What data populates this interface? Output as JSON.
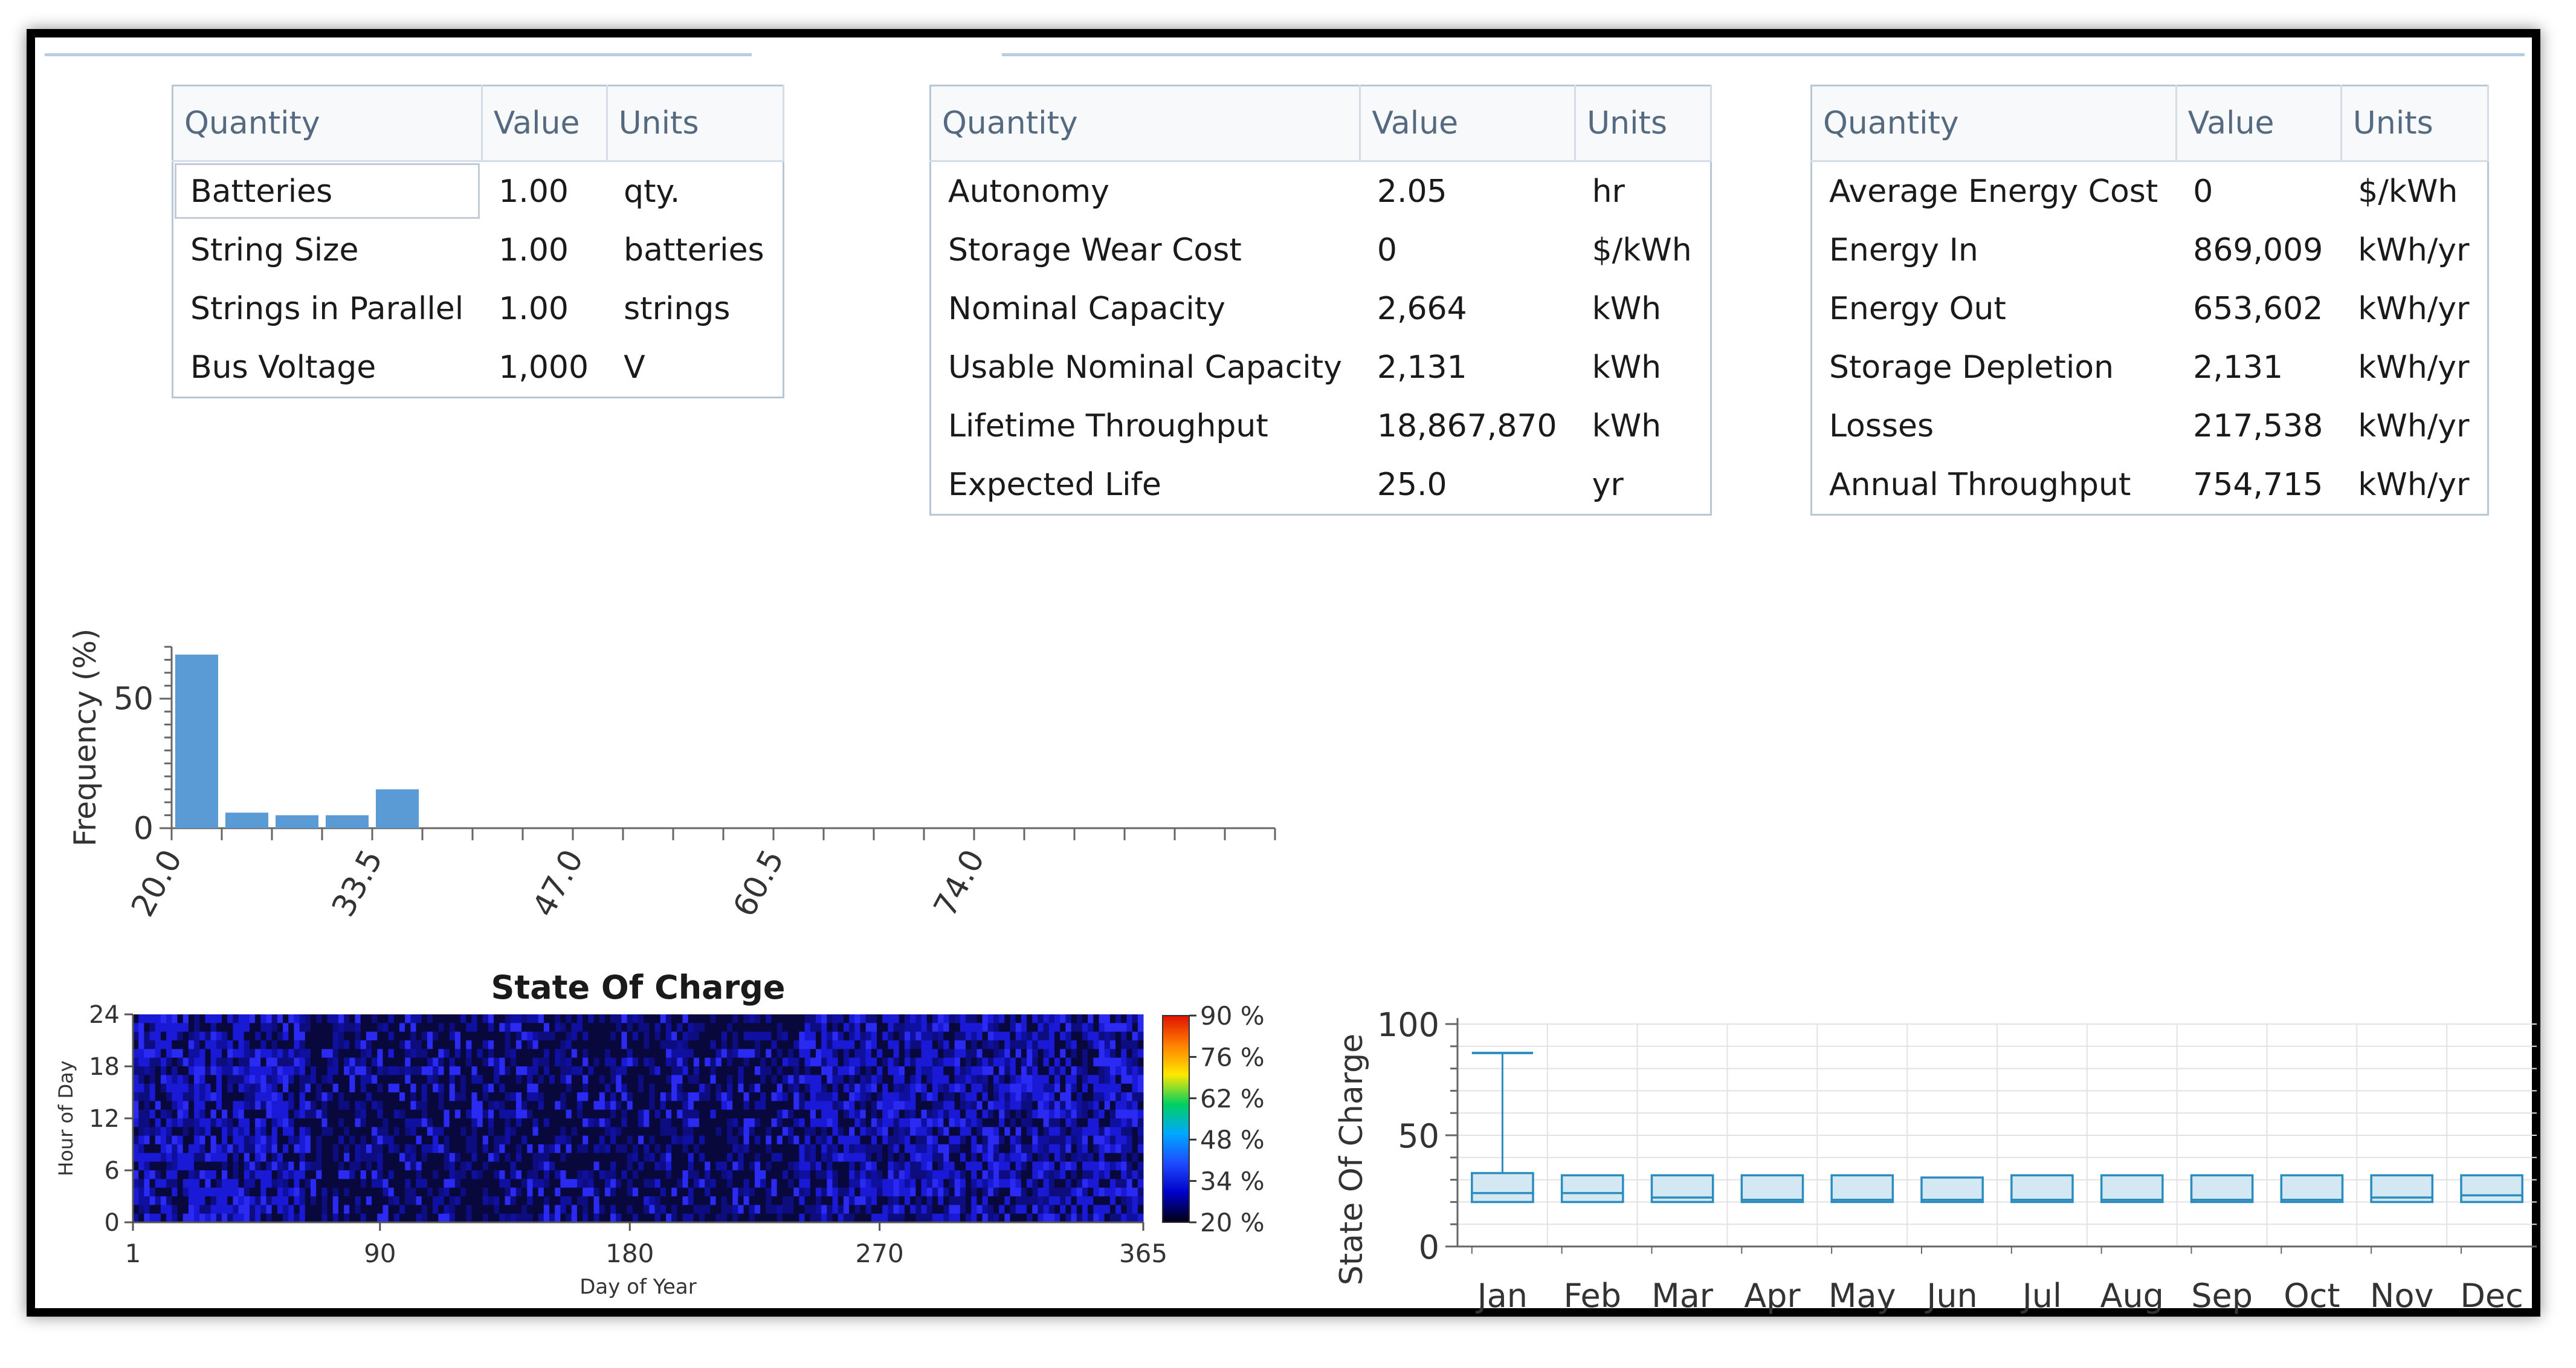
{
  "tables": [
    {
      "headers": [
        "Quantity",
        "Value",
        "Units"
      ],
      "rows": [
        [
          "Batteries",
          "1.00",
          "qty."
        ],
        [
          "String Size",
          "1.00",
          "batteries"
        ],
        [
          "Strings in Parallel",
          "1.00",
          "strings"
        ],
        [
          "Bus Voltage",
          "1,000",
          "V"
        ]
      ]
    },
    {
      "headers": [
        "Quantity",
        "Value",
        "Units"
      ],
      "rows": [
        [
          "Autonomy",
          "2.05",
          "hr"
        ],
        [
          "Storage Wear Cost",
          "0",
          "$/kWh"
        ],
        [
          "Nominal Capacity",
          "2,664",
          "kWh"
        ],
        [
          "Usable Nominal Capacity",
          "2,131",
          "kWh"
        ],
        [
          "Lifetime Throughput",
          "18,867,870",
          "kWh"
        ],
        [
          "Expected Life",
          "25.0",
          "yr"
        ]
      ]
    },
    {
      "headers": [
        "Quantity",
        "Value",
        "Units"
      ],
      "rows": [
        [
          "Average Energy Cost",
          "0",
          "$/kWh"
        ],
        [
          "Energy In",
          "869,009",
          "kWh/yr"
        ],
        [
          "Energy Out",
          "653,602",
          "kWh/yr"
        ],
        [
          "Storage Depletion",
          "2,131",
          "kWh/yr"
        ],
        [
          "Losses",
          "217,538",
          "kWh/yr"
        ],
        [
          "Annual Throughput",
          "754,715",
          "kWh/yr"
        ]
      ]
    }
  ],
  "chart_data": [
    {
      "type": "bar",
      "title": "",
      "xlabel": "",
      "ylabel": "Frequency (%)",
      "bin_width": 3.375,
      "bin_starts": [
        20.0,
        23.375,
        26.75,
        30.125,
        33.5
      ],
      "values": [
        67,
        6,
        5,
        5,
        15
      ],
      "xlim": [
        20.0,
        94.25
      ],
      "ylim": [
        0,
        70
      ],
      "ytick_labels": [
        "0",
        "50"
      ],
      "xtick_labels": [
        "20.0",
        "33.5",
        "47.0",
        "60.5",
        "74.0"
      ],
      "color": "#5b9bd5"
    },
    {
      "type": "heatmap",
      "title": "State Of Charge",
      "xlabel": "Day of Year",
      "ylabel": "Hour of Day",
      "xtick_labels": [
        "1",
        "90",
        "180",
        "270",
        "365"
      ],
      "ytick_labels": [
        "0",
        "6",
        "12",
        "18",
        "24"
      ],
      "colorbar_labels": [
        "20 %",
        "34 %",
        "48 %",
        "62 %",
        "76 %",
        "90 %"
      ],
      "colorscale": [
        "#000014",
        "#0000c8",
        "#1e4bff",
        "#00a8ff",
        "#00d060",
        "#ffe800",
        "#ff8000",
        "#e01000"
      ],
      "value_range": [
        20,
        90
      ]
    },
    {
      "type": "box",
      "title": "",
      "xlabel": "",
      "ylabel": "State Of Charge",
      "categories": [
        "Jan",
        "Feb",
        "Mar",
        "Apr",
        "May",
        "Jun",
        "Jul",
        "Aug",
        "Sep",
        "Oct",
        "Nov",
        "Dec"
      ],
      "ylim": [
        0,
        100
      ],
      "ytick_labels": [
        "0",
        "50",
        "100"
      ],
      "boxes": [
        {
          "q1": 20,
          "median": 24,
          "q3": 33,
          "whisker_high": 87,
          "whisker_low": 20
        },
        {
          "q1": 20,
          "median": 24,
          "q3": 32,
          "whisker_high": 32,
          "whisker_low": 20
        },
        {
          "q1": 20,
          "median": 22,
          "q3": 32,
          "whisker_high": 32,
          "whisker_low": 20
        },
        {
          "q1": 20,
          "median": 21,
          "q3": 32,
          "whisker_high": 32,
          "whisker_low": 20
        },
        {
          "q1": 20,
          "median": 21,
          "q3": 32,
          "whisker_high": 32,
          "whisker_low": 20
        },
        {
          "q1": 20,
          "median": 21,
          "q3": 31,
          "whisker_high": 31,
          "whisker_low": 20
        },
        {
          "q1": 20,
          "median": 21,
          "q3": 32,
          "whisker_high": 32,
          "whisker_low": 20
        },
        {
          "q1": 20,
          "median": 21,
          "q3": 32,
          "whisker_high": 32,
          "whisker_low": 20
        },
        {
          "q1": 20,
          "median": 21,
          "q3": 32,
          "whisker_high": 32,
          "whisker_low": 20
        },
        {
          "q1": 20,
          "median": 21,
          "q3": 32,
          "whisker_high": 32,
          "whisker_low": 20
        },
        {
          "q1": 20,
          "median": 22,
          "q3": 32,
          "whisker_high": 32,
          "whisker_low": 20
        },
        {
          "q1": 20,
          "median": 23,
          "q3": 32,
          "whisker_high": 32,
          "whisker_low": 20
        }
      ],
      "box_color": "#2b8cbe",
      "box_fill": "#d4e8f4"
    }
  ]
}
